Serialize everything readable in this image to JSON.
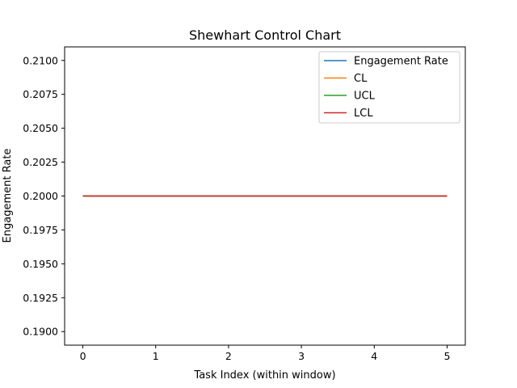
{
  "chart_data": {
    "type": "line",
    "title": "Shewhart Control Chart",
    "xlabel": "Task Index (within window)",
    "ylabel": "Engagement Rate",
    "x": [
      0,
      1,
      2,
      3,
      4,
      5
    ],
    "xticks": [
      0,
      1,
      2,
      3,
      4,
      5
    ],
    "yticks": [
      0.19,
      0.1925,
      0.195,
      0.1975,
      0.2,
      0.2025,
      0.205,
      0.2075,
      0.21
    ],
    "ytick_labels": [
      "0.1900",
      "0.1925",
      "0.1950",
      "0.1975",
      "0.2000",
      "0.2025",
      "0.2050",
      "0.2075",
      "0.2100"
    ],
    "xlim": [
      -0.25,
      5.25
    ],
    "ylim": [
      0.189,
      0.211
    ],
    "grid": false,
    "legend_position": "upper right",
    "series": [
      {
        "name": "Engagement Rate",
        "color": "#1f77b4",
        "values": [
          0.2,
          0.2,
          0.2,
          0.2,
          0.2,
          0.2
        ]
      },
      {
        "name": "CL",
        "color": "#ff7f0e",
        "values": [
          0.2,
          0.2,
          0.2,
          0.2,
          0.2,
          0.2
        ]
      },
      {
        "name": "UCL",
        "color": "#2ca02c",
        "values": [
          0.2,
          0.2,
          0.2,
          0.2,
          0.2,
          0.2
        ]
      },
      {
        "name": "LCL",
        "color": "#d62728",
        "values": [
          0.2,
          0.2,
          0.2,
          0.2,
          0.2,
          0.2
        ]
      }
    ]
  }
}
